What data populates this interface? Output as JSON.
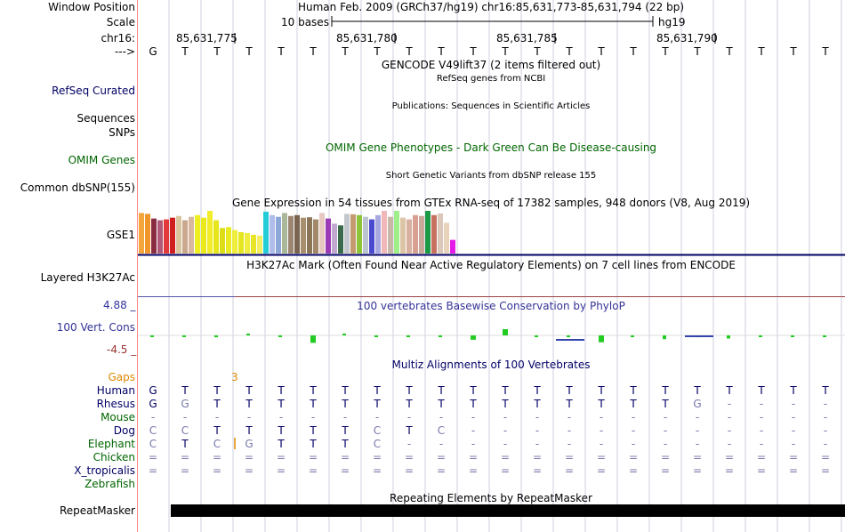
{
  "header": {
    "window_position_label": "Window Position",
    "window_position_value": "Human Feb. 2009 (GRCh37/hg19)   chr16:85,631,773-85,631,794 (22 bp)",
    "scale_label": "Scale",
    "scale_value": "10 bases",
    "scale_assembly": "hg19",
    "chrom_label": "chr16:",
    "strand_label": "--->"
  },
  "ruler_ticks": [
    "85,631,775",
    "85,631,780",
    "85,631,785",
    "85,631,790"
  ],
  "bases": [
    "G",
    "T",
    "T",
    "T",
    "T",
    "T",
    "T",
    "T",
    "T",
    "T",
    "T",
    "T",
    "T",
    "T",
    "T",
    "T",
    "T",
    "T",
    "T",
    "T",
    "T",
    "T"
  ],
  "tracks": {
    "gencode": {
      "title": "GENCODE V49lift37 (2 items filtered out)"
    },
    "refseq": {
      "label": "RefSeq Curated",
      "subtitle": "RefSeq genes from NCBI"
    },
    "publications": {
      "label": "Sequences",
      "subtitle": "Publications: Sequences in Scientific Articles"
    },
    "snps": {
      "label": "SNPs"
    },
    "omim": {
      "label": "OMIM Genes",
      "title": "OMIM Gene Phenotypes - Dark Green Can Be Disease-causing"
    },
    "dbsnp": {
      "label": "Common dbSNP(155)",
      "title": "Short Genetic Variants from dbSNP release 155"
    },
    "gtex": {
      "label": "GSE1",
      "title": "Gene Expression in 54 tissues from GTEx RNA-seq of 17382 samples, 948 donors (V8, Aug 2019)"
    },
    "h3k27ac": {
      "label": "Layered H3K27Ac",
      "title": "H3K27Ac Mark (Often Found Near Active Regulatory Elements) on 7 cell lines from ENCODE"
    },
    "phylop": {
      "label": "100 Vert. Cons",
      "max_label": "4.88 _",
      "min_label": "-4.5 _",
      "title": "100 vertebrates Basewise Conservation by PhyloP"
    },
    "multiz": {
      "title": "Multiz Alignments of 100 Vertebrates",
      "gaps_label": "Gaps",
      "gap_count": "3"
    },
    "repeatmasker": {
      "label": "RepeatMasker",
      "title": "Repeating Elements by RepeatMasker"
    }
  },
  "gtex_bars": [
    {
      "color": "#f4a63c",
      "value": 0.95
    },
    {
      "color": "#f0952c",
      "value": 0.93
    },
    {
      "color": "#8a2c40",
      "value": 0.82
    },
    {
      "color": "#b05a78",
      "value": 0.78
    },
    {
      "color": "#e23a3a",
      "value": 0.8
    },
    {
      "color": "#d01f1f",
      "value": 0.84
    },
    {
      "color": "#d9c59e",
      "value": 0.88
    },
    {
      "color": "#c9a88e",
      "value": 0.78
    },
    {
      "color": "#d8b8a0",
      "value": 0.86
    },
    {
      "color": "#eeee22",
      "value": 0.9
    },
    {
      "color": "#eaea1a",
      "value": 0.84
    },
    {
      "color": "#f2ec2a",
      "value": 1.0
    },
    {
      "color": "#e6e61a",
      "value": 0.78
    },
    {
      "color": "#dede18",
      "value": 0.6
    },
    {
      "color": "#eaea22",
      "value": 0.62
    },
    {
      "color": "#eded3a",
      "value": 0.55
    },
    {
      "color": "#e5e520",
      "value": 0.5
    },
    {
      "color": "#f0ec40",
      "value": 0.48
    },
    {
      "color": "#e8e428",
      "value": 0.44
    },
    {
      "color": "#f2ee66",
      "value": 0.42
    },
    {
      "color": "#22cdd8",
      "value": 0.98
    },
    {
      "color": "#b0bcea",
      "value": 0.9
    },
    {
      "color": "#8da8d8",
      "value": 0.86
    },
    {
      "color": "#a8b898",
      "value": 0.95
    },
    {
      "color": "#9c8672",
      "value": 0.88
    },
    {
      "color": "#7a6450",
      "value": 0.9
    },
    {
      "color": "#a8906e",
      "value": 0.84
    },
    {
      "color": "#8a7656",
      "value": 0.85
    },
    {
      "color": "#a08868",
      "value": 0.8
    },
    {
      "color": "#e6c8c0",
      "value": 0.95
    },
    {
      "color": "#9a3ab6",
      "value": 0.82
    },
    {
      "color": "#c0a8d0",
      "value": 0.7
    },
    {
      "color": "#3a6a4a",
      "value": 0.66
    },
    {
      "color": "#c4c8cc",
      "value": 0.93
    },
    {
      "color": "#c49a70",
      "value": 0.92
    },
    {
      "color": "#8cc43a",
      "value": 0.9
    },
    {
      "color": "#bcc4d0",
      "value": 0.86
    },
    {
      "color": "#4a4ad0",
      "value": 0.8
    },
    {
      "color": "#a8a8e0",
      "value": 0.9
    },
    {
      "color": "#f0b8b8",
      "value": 1.0
    },
    {
      "color": "#c8b8a8",
      "value": 0.86
    },
    {
      "color": "#a0f08a",
      "value": 1.0
    },
    {
      "color": "#dcc4a6",
      "value": 0.84
    },
    {
      "color": "#d8b0a0",
      "value": 0.8
    },
    {
      "color": "#d8a090",
      "value": 0.9
    },
    {
      "color": "#c8a898",
      "value": 0.88
    },
    {
      "color": "#1a9a44",
      "value": 1.0
    },
    {
      "color": "#c87060",
      "value": 0.9
    },
    {
      "color": "#dcc8b8",
      "value": 0.94
    },
    {
      "color": "#e8d2ba",
      "value": 0.72
    },
    {
      "color": "#e61ae6",
      "value": 0.32
    }
  ],
  "phylop_values": [
    -0.05,
    -0.05,
    -0.15,
    0,
    -0.1,
    -0.6,
    0,
    -0.1,
    -0.05,
    -0.1,
    -0.35,
    0.5,
    -0.1,
    -0.05,
    -0.55,
    -0.1,
    -0.3,
    -0.15,
    -0.25,
    -0.1,
    -0.05,
    -0.1
  ],
  "species": [
    {
      "name": "Human",
      "color": "#000066",
      "seq": [
        "G",
        "T",
        "T",
        "T",
        "T",
        "T",
        "T",
        "T",
        "T",
        "T",
        "T",
        "T",
        "T",
        "T",
        "T",
        "T",
        "T",
        "T",
        "T",
        "T",
        "T",
        "T"
      ]
    },
    {
      "name": "Rhesus",
      "color": "#000066",
      "seq": [
        "G",
        "G",
        "T",
        "T",
        "T",
        "T",
        "T",
        "T",
        "T",
        "T",
        "T",
        "T",
        "T",
        "T",
        "T",
        "T",
        "T",
        "G",
        "-",
        "-",
        "-",
        "-"
      ]
    },
    {
      "name": "Mouse",
      "color": "#006600",
      "seq": [
        "-",
        "-",
        "-",
        "-",
        "-",
        "-",
        "-",
        "-",
        "-",
        "-",
        "-",
        "-",
        "-",
        "-",
        "-",
        "-",
        "-",
        "-",
        "-",
        "-",
        "-",
        "-"
      ]
    },
    {
      "name": "Dog",
      "color": "#000066",
      "seq": [
        "C",
        "C",
        "T",
        "T",
        "T",
        "T",
        "T",
        "C",
        "T",
        "C",
        "-",
        "-",
        "-",
        "-",
        "-",
        "-",
        "-",
        "-",
        "-",
        "-",
        "-",
        "-"
      ]
    },
    {
      "name": "Elephant",
      "color": "#006600",
      "seq": [
        "C",
        "T",
        "C",
        "G",
        "T",
        "T",
        "T",
        "C",
        "-",
        "-",
        "-",
        "-",
        "-",
        "-",
        "-",
        "-",
        "-",
        "-",
        "-",
        "-",
        "-",
        "-"
      ]
    },
    {
      "name": "Chicken",
      "color": "#006600",
      "seq": [
        "=",
        "=",
        "=",
        "=",
        "=",
        "=",
        "=",
        "=",
        "=",
        "=",
        "=",
        "=",
        "=",
        "=",
        "=",
        "=",
        "=",
        "=",
        "=",
        "=",
        "=",
        "="
      ]
    },
    {
      "name": "X_tropicalis",
      "color": "#000066",
      "seq": [
        "=",
        "=",
        "=",
        "=",
        "=",
        "=",
        "=",
        "=",
        "=",
        "=",
        "=",
        "=",
        "=",
        "=",
        "=",
        "=",
        "=",
        "=",
        "=",
        "=",
        "=",
        "="
      ]
    },
    {
      "name": "Zebrafish",
      "color": "#006600",
      "seq": []
    }
  ],
  "colors": {
    "label_blue": "#000066",
    "label_green": "#006600",
    "gaps_orange": "#dd8800",
    "phylop_title": "#333399",
    "phylop_neg": "#993333",
    "guide_line": "#cfcfdf",
    "separator": "#ff8888",
    "repeat_fill": "#000000"
  }
}
